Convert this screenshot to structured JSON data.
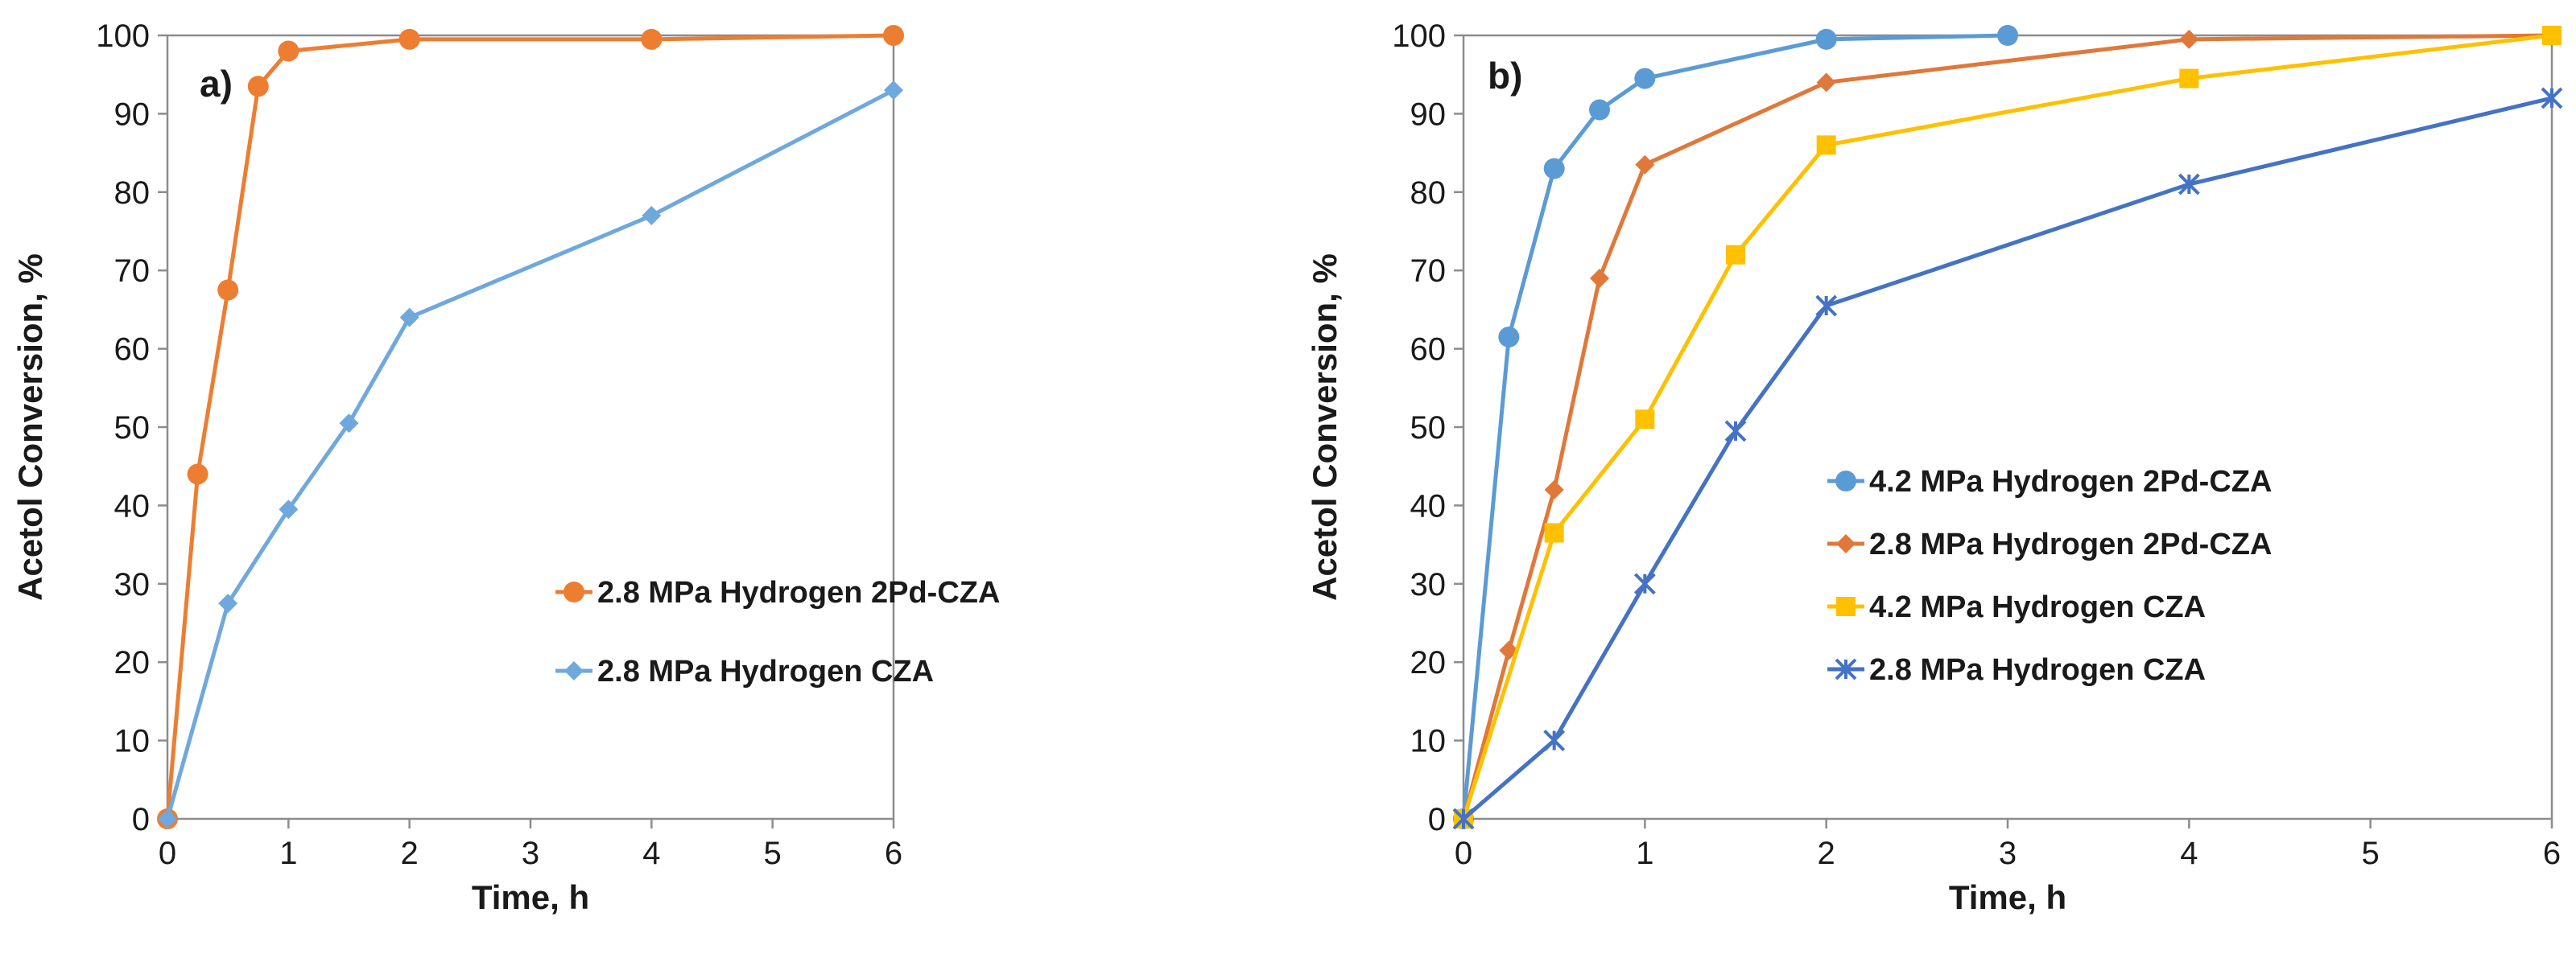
{
  "chart_data": [
    {
      "type": "line",
      "panel_label": "a)",
      "title": "",
      "xlabel": "Time, h",
      "ylabel": "Acetol Conversion, %",
      "xlim": [
        0,
        6
      ],
      "ylim": [
        0,
        100
      ],
      "x_ticks": [
        0,
        1,
        2,
        3,
        4,
        5,
        6
      ],
      "y_ticks": [
        0,
        10,
        20,
        30,
        40,
        50,
        60,
        70,
        80,
        90,
        100
      ],
      "grid": false,
      "legend_position": "lower-right",
      "series": [
        {
          "name": "2.8 MPa Hydrogen 2Pd-CZA",
          "color": "#ED7D31",
          "marker": "circle",
          "x": [
            0,
            0.25,
            0.5,
            0.75,
            1,
            2,
            4,
            6
          ],
          "y": [
            0,
            44,
            67.5,
            93.5,
            98,
            99.5,
            99.5,
            100
          ]
        },
        {
          "name": "2.8 MPa Hydrogen CZA",
          "color": "#6FA8DC",
          "marker": "diamond",
          "x": [
            0,
            0.5,
            1,
            1.5,
            2,
            4,
            6
          ],
          "y": [
            0,
            27.5,
            39.5,
            50.5,
            64,
            77,
            93
          ]
        }
      ]
    },
    {
      "type": "line",
      "panel_label": "b)",
      "title": "",
      "xlabel": "Time, h",
      "ylabel": "Acetol Conversion, %",
      "xlim": [
        0,
        6
      ],
      "ylim": [
        0,
        100
      ],
      "x_ticks": [
        0,
        1,
        2,
        3,
        4,
        5,
        6
      ],
      "y_ticks": [
        0,
        10,
        20,
        30,
        40,
        50,
        60,
        70,
        80,
        90,
        100
      ],
      "grid": false,
      "legend_position": "lower-right",
      "series": [
        {
          "name": "4.2 MPa Hydrogen 2Pd-CZA",
          "color": "#5B9BD5",
          "marker": "circle",
          "x": [
            0,
            0.25,
            0.5,
            0.75,
            1,
            2,
            3
          ],
          "y": [
            0,
            61.5,
            83,
            90.5,
            94.5,
            99.5,
            100
          ]
        },
        {
          "name": "2.8 MPa Hydrogen 2Pd-CZA",
          "color": "#E0783A",
          "marker": "diamond",
          "x": [
            0,
            0.25,
            0.5,
            0.75,
            1,
            2,
            4,
            6
          ],
          "y": [
            0,
            21.5,
            42,
            69,
            83.5,
            94,
            99.5,
            100
          ]
        },
        {
          "name": "4.2 MPa Hydrogen CZA",
          "color": "#FFC000",
          "marker": "square",
          "x": [
            0,
            0.5,
            1,
            1.5,
            2,
            4,
            6
          ],
          "y": [
            0,
            36.5,
            51,
            72,
            86,
            94.5,
            100
          ]
        },
        {
          "name": "2.8 MPa Hydrogen CZA",
          "color": "#4472C4",
          "marker": "star",
          "x": [
            0,
            0.5,
            1,
            1.5,
            2,
            4,
            6
          ],
          "y": [
            0,
            10,
            30,
            49.5,
            65.5,
            81,
            92
          ]
        }
      ]
    }
  ]
}
